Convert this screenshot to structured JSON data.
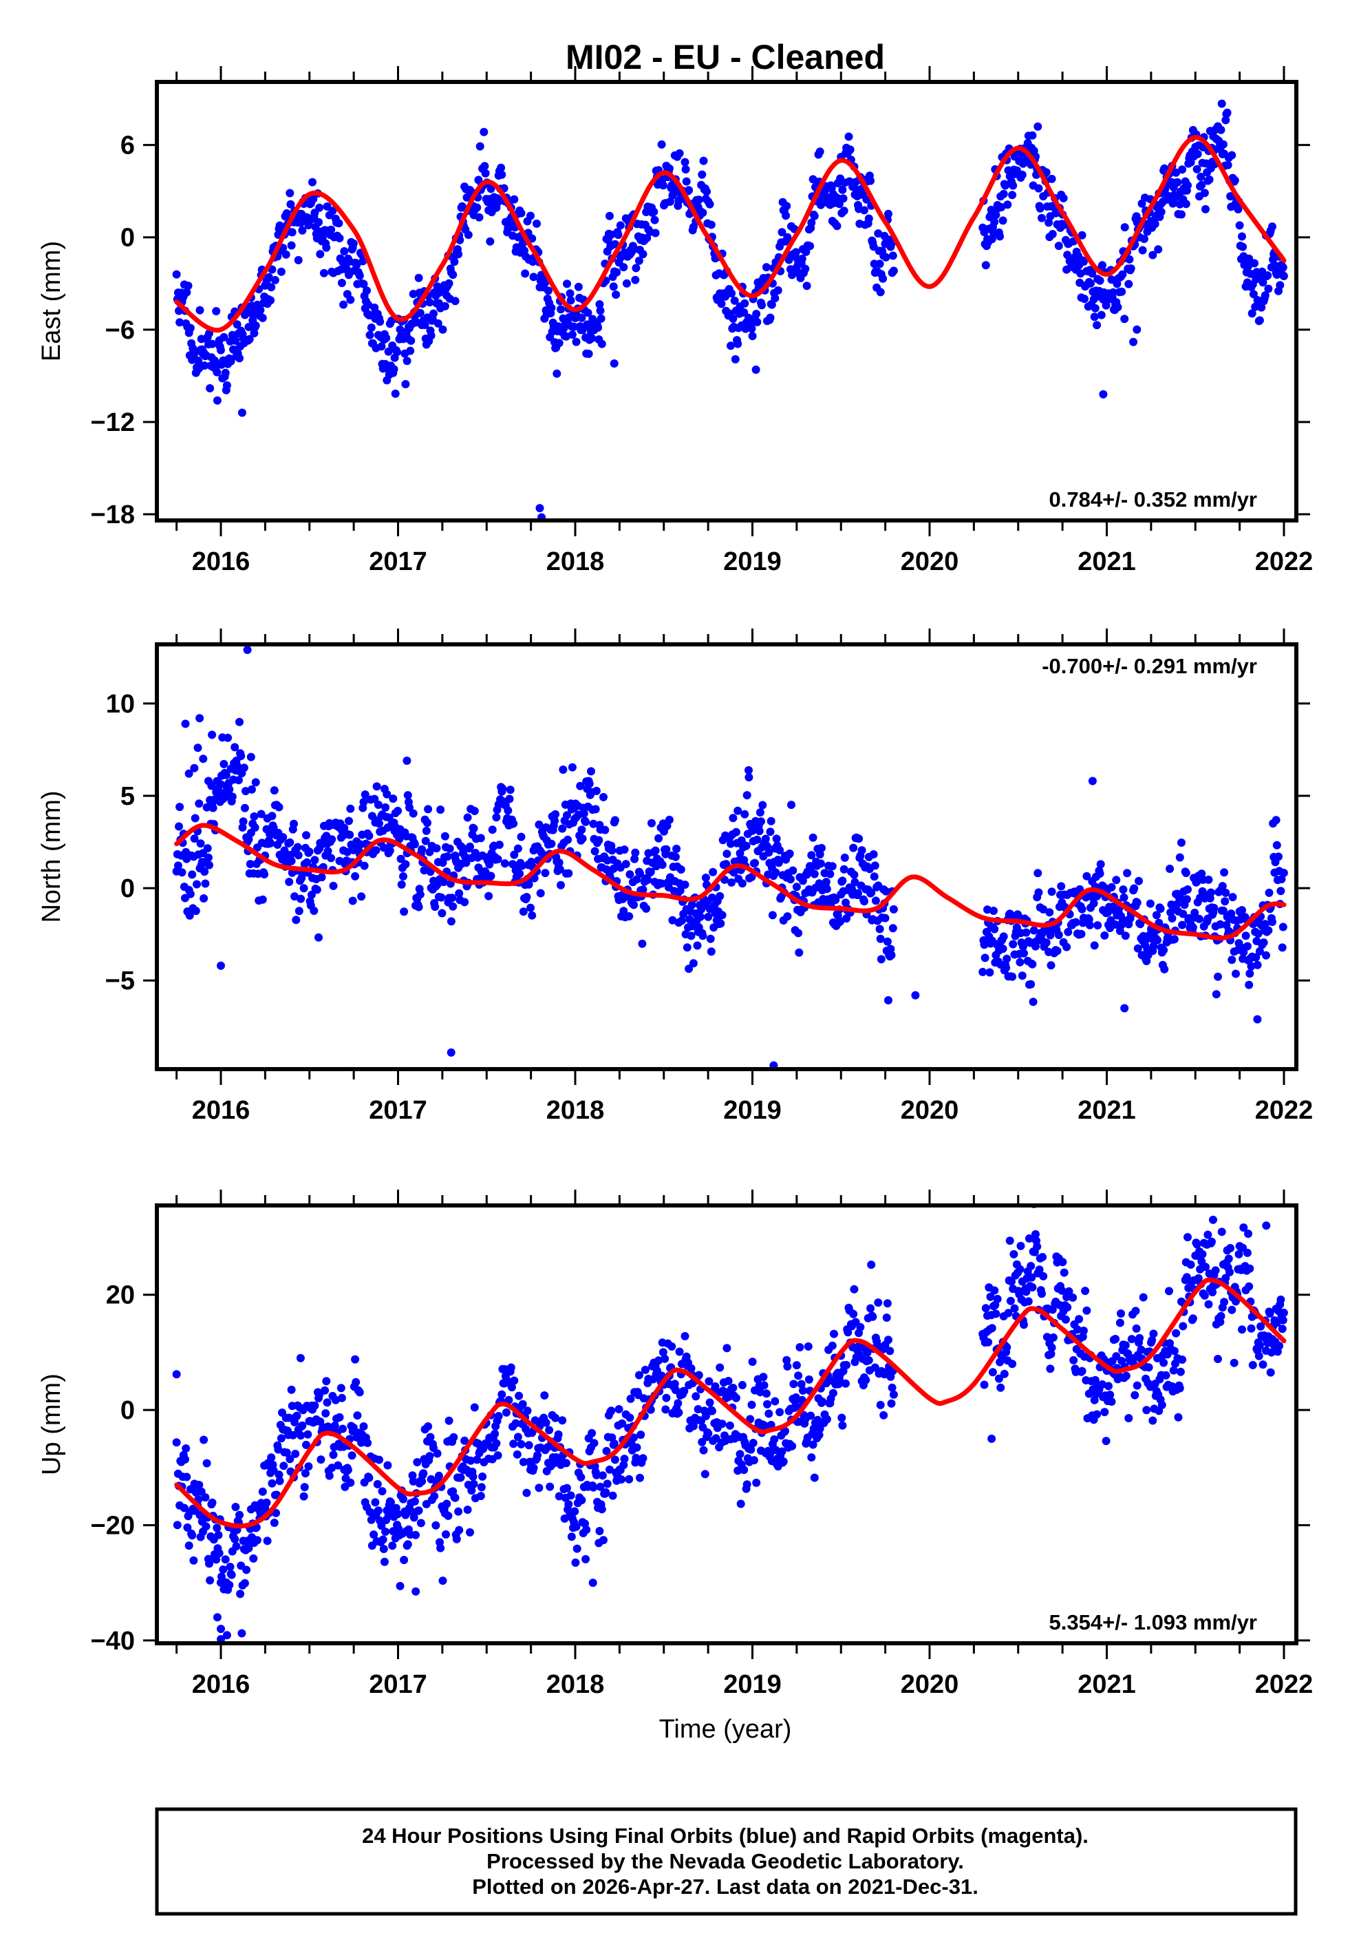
{
  "chart_data": {
    "type": "scatter",
    "title": "MI02  - EU - Cleaned",
    "xlabel": "Time (year)",
    "xlim": [
      2015.63,
      2022.2
    ],
    "x_ticks": [
      "2016",
      "2017",
      "2018",
      "2019",
      "2020",
      "2021",
      "2022"
    ],
    "x_tick_values": [
      2016,
      2017,
      2018,
      2019,
      2020,
      2021,
      2022
    ],
    "x_minor_step": 0.25,
    "data_segments": [
      [
        2015.75,
        2019.8
      ],
      [
        2020.3,
        2022.0
      ]
    ],
    "point_color": "#0000ff",
    "fit_color": "#ff0000",
    "panels": [
      {
        "name": "east",
        "ylabel": "East (mm)",
        "ylim": [
          -18.4,
          10.1
        ],
        "y_ticks": [
          "6",
          "0",
          "−6",
          "−12",
          "−18"
        ],
        "y_tick_values": [
          6,
          0,
          -6,
          -12,
          -18
        ],
        "rate_text": "0.784+/- 0.352 mm/yr",
        "rate_position": "bottom-right",
        "model": {
          "t0": 2019,
          "offset": -0.9,
          "rate": 0.784,
          "annual_amp": 4.6,
          "annual_peak": 0.5,
          "semi_amp": 0.3,
          "semi_phase": 0.1,
          "noise": 1.3,
          "seed": 11
        },
        "outliers": [
          [
            2017.8,
            -17.6
          ],
          [
            2017.81,
            -18.2
          ],
          [
            2016.12,
            -11.4
          ],
          [
            2020.98,
            -10.2
          ],
          [
            2021.15,
            -6.8
          ],
          [
            2021.1,
            -5.3
          ],
          [
            2021.17,
            -6.0
          ],
          [
            2015.98,
            -10.6
          ],
          [
            2019.02,
            -8.6
          ],
          [
            2018.22,
            -8.2
          ]
        ],
        "fit_curve": {
          "x": [
            2015.75,
            2016.0,
            2016.25,
            2016.5,
            2016.75,
            2017.0,
            2017.25,
            2017.5,
            2017.75,
            2018.0,
            2018.25,
            2018.5,
            2018.75,
            2019.0,
            2019.25,
            2019.5,
            2019.75,
            2020.0,
            2020.25,
            2020.5,
            2020.75,
            2021.0,
            2021.25,
            2021.5,
            2021.75,
            2022.0
          ],
          "y": [
            -4.2,
            -6.0,
            -2.2,
            2.8,
            0.5,
            -5.3,
            -1.8,
            3.6,
            -0.6,
            -4.7,
            -0.6,
            4.2,
            0.0,
            -3.8,
            0.2,
            5.0,
            1.0,
            -3.2,
            1.3,
            5.8,
            1.6,
            -2.4,
            2.0,
            6.5,
            2.4,
            -1.5
          ]
        }
      },
      {
        "name": "north",
        "ylabel": "North (mm)",
        "ylim": [
          -9.8,
          13.2
        ],
        "y_ticks": [
          "10",
          "5",
          "0",
          "−5"
        ],
        "y_tick_values": [
          10,
          5,
          0,
          -5
        ],
        "rate_text": "-0.700+/- 0.291 mm/yr",
        "rate_position": "top-right",
        "model": {
          "t0": 2019,
          "offset": 0.2,
          "rate": -0.7,
          "annual_amp": 0.9,
          "annual_peak": 0.92,
          "semi_amp": 0.35,
          "semi_phase": 0.0,
          "noise": 1.4,
          "seed": 23
        },
        "outliers": [
          [
            2016.15,
            12.9
          ],
          [
            2017.3,
            -8.9
          ],
          [
            2019.12,
            -9.6
          ],
          [
            2021.85,
            -7.1
          ],
          [
            2016.0,
            -4.2
          ],
          [
            2015.95,
            8.3
          ],
          [
            2015.8,
            8.9
          ],
          [
            2015.88,
            9.2
          ],
          [
            2015.9,
            7.0
          ],
          [
            2015.85,
            6.5
          ],
          [
            2015.93,
            5.8
          ],
          [
            2015.82,
            6.2
          ],
          [
            2015.87,
            7.6
          ],
          [
            2016.17,
            7.1
          ],
          [
            2020.92,
            5.8
          ],
          [
            2018.98,
            6.0
          ],
          [
            2019.92,
            -5.8
          ],
          [
            2017.05,
            6.9
          ],
          [
            2021.1,
            -6.5
          ]
        ],
        "fit_curve": {
          "x": [
            2015.75,
            2015.9,
            2016.1,
            2016.3,
            2016.5,
            2016.7,
            2016.9,
            2017.1,
            2017.3,
            2017.5,
            2017.7,
            2017.9,
            2018.1,
            2018.3,
            2018.5,
            2018.7,
            2018.9,
            2019.1,
            2019.3,
            2019.5,
            2019.7,
            2019.9,
            2020.1,
            2020.3,
            2020.5,
            2020.7,
            2020.9,
            2021.1,
            2021.3,
            2021.5,
            2021.7,
            2021.9,
            2022.0
          ],
          "y": [
            2.4,
            3.4,
            2.5,
            1.3,
            1.0,
            1.0,
            2.6,
            1.8,
            0.5,
            0.3,
            0.4,
            2.0,
            1.0,
            -0.2,
            -0.4,
            -0.5,
            1.2,
            0.3,
            -0.9,
            -1.1,
            -1.1,
            0.6,
            -0.5,
            -1.6,
            -1.8,
            -1.9,
            -0.1,
            -1.0,
            -2.2,
            -2.5,
            -2.6,
            -1.0,
            -0.9
          ]
        }
      },
      {
        "name": "up",
        "ylabel": "Up (mm)",
        "ylim": [
          -40.5,
          35.5
        ],
        "y_ticks": [
          "20",
          "0",
          "−20",
          "−40"
        ],
        "y_tick_values": [
          20,
          0,
          -20,
          -40
        ],
        "rate_text": "5.354+/- 1.093 mm/yr",
        "rate_position": "bottom-right",
        "model": {
          "t0": 2019,
          "offset": 0.5,
          "rate": 5.354,
          "annual_amp": 7.5,
          "annual_peak": 0.62,
          "semi_amp": 1.0,
          "semi_phase": 0.2,
          "noise": 5.2,
          "seed": 37
        },
        "outliers": [
          [
            2015.98,
            -36.0
          ],
          [
            2016.0,
            -38.0
          ],
          [
            2016.0,
            -39.8
          ],
          [
            2015.75,
            6.2
          ],
          [
            2016.45,
            9.0
          ],
          [
            2018.1,
            -30.0
          ],
          [
            2017.1,
            -31.5
          ],
          [
            2020.35,
            -5.0
          ],
          [
            2021.6,
            33.0
          ],
          [
            2021.9,
            32.0
          ]
        ],
        "fit_curve": {
          "x": [
            2015.75,
            2016.0,
            2016.25,
            2016.5,
            2016.6,
            2016.75,
            2017.0,
            2017.1,
            2017.25,
            2017.5,
            2017.6,
            2017.75,
            2018.0,
            2018.1,
            2018.25,
            2018.5,
            2018.6,
            2018.75,
            2019.0,
            2019.1,
            2019.25,
            2019.5,
            2019.6,
            2019.75,
            2020.0,
            2020.1,
            2020.25,
            2020.5,
            2020.6,
            2020.75,
            2021.0,
            2021.1,
            2021.25,
            2021.5,
            2021.6,
            2021.75,
            2022.0
          ],
          "y": [
            -13.0,
            -19.5,
            -18.5,
            -7.0,
            -4.0,
            -6.5,
            -13.5,
            -14.5,
            -12.5,
            -1.5,
            1.0,
            -2.5,
            -8.5,
            -9.0,
            -6.5,
            5.0,
            6.8,
            3.5,
            -3.0,
            -3.5,
            -1.0,
            10.0,
            12.0,
            9.0,
            2.0,
            1.5,
            4.5,
            15.5,
            17.5,
            14.0,
            7.5,
            7.0,
            9.5,
            20.5,
            22.5,
            19.5,
            12.0
          ]
        }
      }
    ]
  },
  "footer": {
    "lines": [
      "24 Hour Positions Using Final Orbits (blue) and Rapid Orbits (magenta).",
      "Processed by the Nevada Geodetic Laboratory.",
      "Plotted on 2026-Apr-27. Last data on 2021-Dec-31."
    ]
  }
}
